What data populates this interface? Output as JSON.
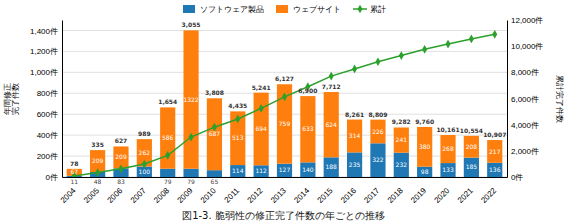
{
  "chart_data": {
    "type": "bar",
    "title": "図1-3. 脆弱性の修正完了件数の年ごとの推移",
    "ylabel": "年間修正\n完了件数",
    "y2label": "累計完了件数",
    "categories": [
      "2004",
      "2005",
      "2006",
      "2007",
      "2008",
      "2009",
      "2010",
      "2011",
      "2012",
      "2013",
      "2014",
      "2015",
      "2016",
      "2017",
      "2018",
      "2019",
      "2020",
      "2021",
      "2022"
    ],
    "stacked": true,
    "data_labels": true,
    "grid": true,
    "legend": "top",
    "series": [
      {
        "name": "ソフトウェア製品",
        "type": "bar",
        "values": [
          11,
          48,
          83,
          100,
          79,
          79,
          65,
          114,
          112,
          127,
          140,
          188,
          235,
          322,
          232,
          98,
          133,
          185,
          136
        ]
      },
      {
        "name": "ウェブサイト",
        "type": "bar",
        "values": [
          67,
          209,
          209,
          262,
          586,
          1322,
          687,
          513,
          694,
          759,
          633,
          624,
          314,
          226,
          241,
          380,
          268,
          208,
          217
        ]
      },
      {
        "name": "累計",
        "type": "line",
        "marker": "diamond",
        "axis": "y2",
        "values": [
          78,
          335,
          627,
          989,
          1654,
          3055,
          3808,
          4435,
          5241,
          6127,
          6900,
          7712,
          8261,
          8809,
          9282,
          9760,
          10161,
          10554,
          10907
        ],
        "value_labels": [
          "78",
          "335",
          "627",
          "989",
          "1,654",
          "3,055",
          "3,808",
          "4,435",
          "5,241",
          "6,127",
          "6,900",
          "7,712",
          "8,261",
          "8,809",
          "9,282",
          "9,760",
          "10,161",
          "10,554",
          "10,907"
        ]
      }
    ],
    "ylim": [
      0,
      1500
    ],
    "yticks": [
      {
        "value": 0,
        "label": "0件"
      },
      {
        "value": 200,
        "label": "200件"
      },
      {
        "value": 400,
        "label": "400件"
      },
      {
        "value": 600,
        "label": "600件"
      },
      {
        "value": 800,
        "label": "800件"
      },
      {
        "value": 1000,
        "label": "1,000件"
      },
      {
        "value": 1200,
        "label": "1,200件"
      },
      {
        "value": 1400,
        "label": "1,400件"
      }
    ],
    "y2lim": [
      0,
      12000
    ],
    "y2ticks": [
      {
        "value": 0,
        "label": "0件"
      },
      {
        "value": 2000,
        "label": "2,000件"
      },
      {
        "value": 4000,
        "label": "4,000件"
      },
      {
        "value": 6000,
        "label": "6,000件"
      },
      {
        "value": 8000,
        "label": "8,000件"
      },
      {
        "value": 10000,
        "label": "10,000件"
      },
      {
        "value": 12000,
        "label": "12,000件"
      }
    ]
  }
}
